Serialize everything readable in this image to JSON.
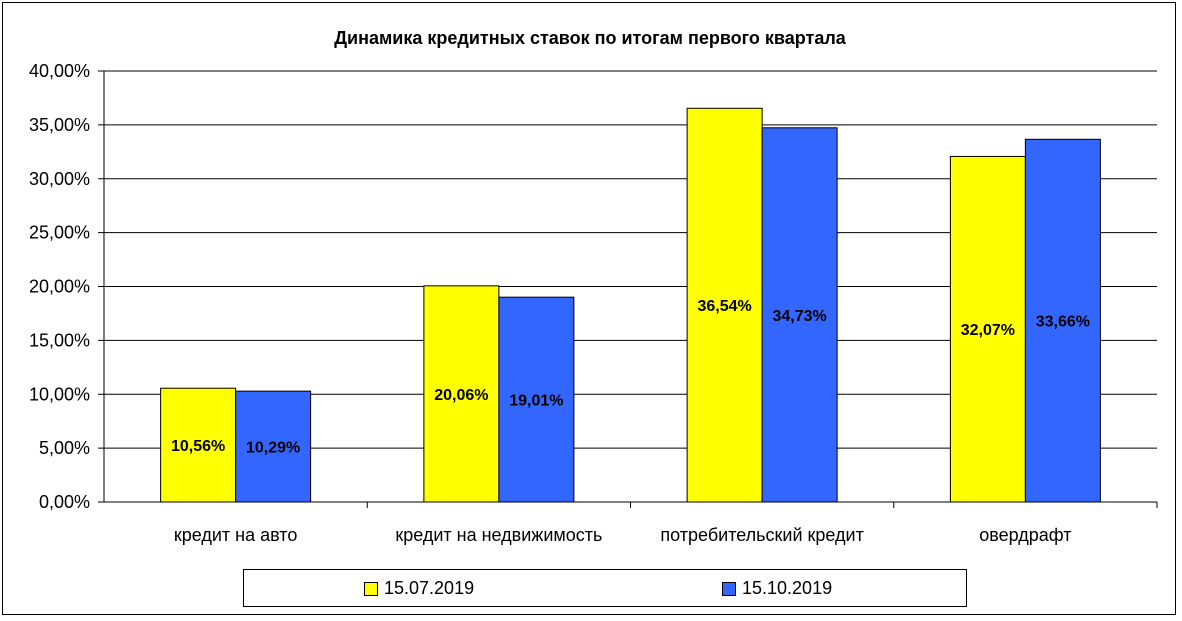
{
  "chart_data": {
    "type": "bar",
    "title": "Динамика кредитных ставок по итогам первого квартала",
    "categories": [
      "кредит на авто",
      "кредит на недвижимость",
      "потребительский кредит",
      "овердрафт"
    ],
    "series": [
      {
        "name": "15.07.2019",
        "color": "#FFFF00",
        "values": [
          10.56,
          20.06,
          36.54,
          32.07
        ],
        "labels": [
          "10,56%",
          "20,06%",
          "36,54%",
          "32,07%"
        ]
      },
      {
        "name": "15.10.2019",
        "color": "#3366FF",
        "values": [
          10.29,
          19.01,
          34.73,
          33.66
        ],
        "labels": [
          "10,29%",
          "19,01%",
          "34,73%",
          "33,66%"
        ]
      }
    ],
    "ylim": [
      0,
      40
    ],
    "yticks": [
      0,
      5,
      10,
      15,
      20,
      25,
      30,
      35,
      40
    ],
    "ytick_labels": [
      "0,00%",
      "5,00%",
      "10,00%",
      "15,00%",
      "20,00%",
      "25,00%",
      "30,00%",
      "35,00%",
      "40,00%"
    ],
    "grid": true,
    "legend_position": "bottom"
  }
}
